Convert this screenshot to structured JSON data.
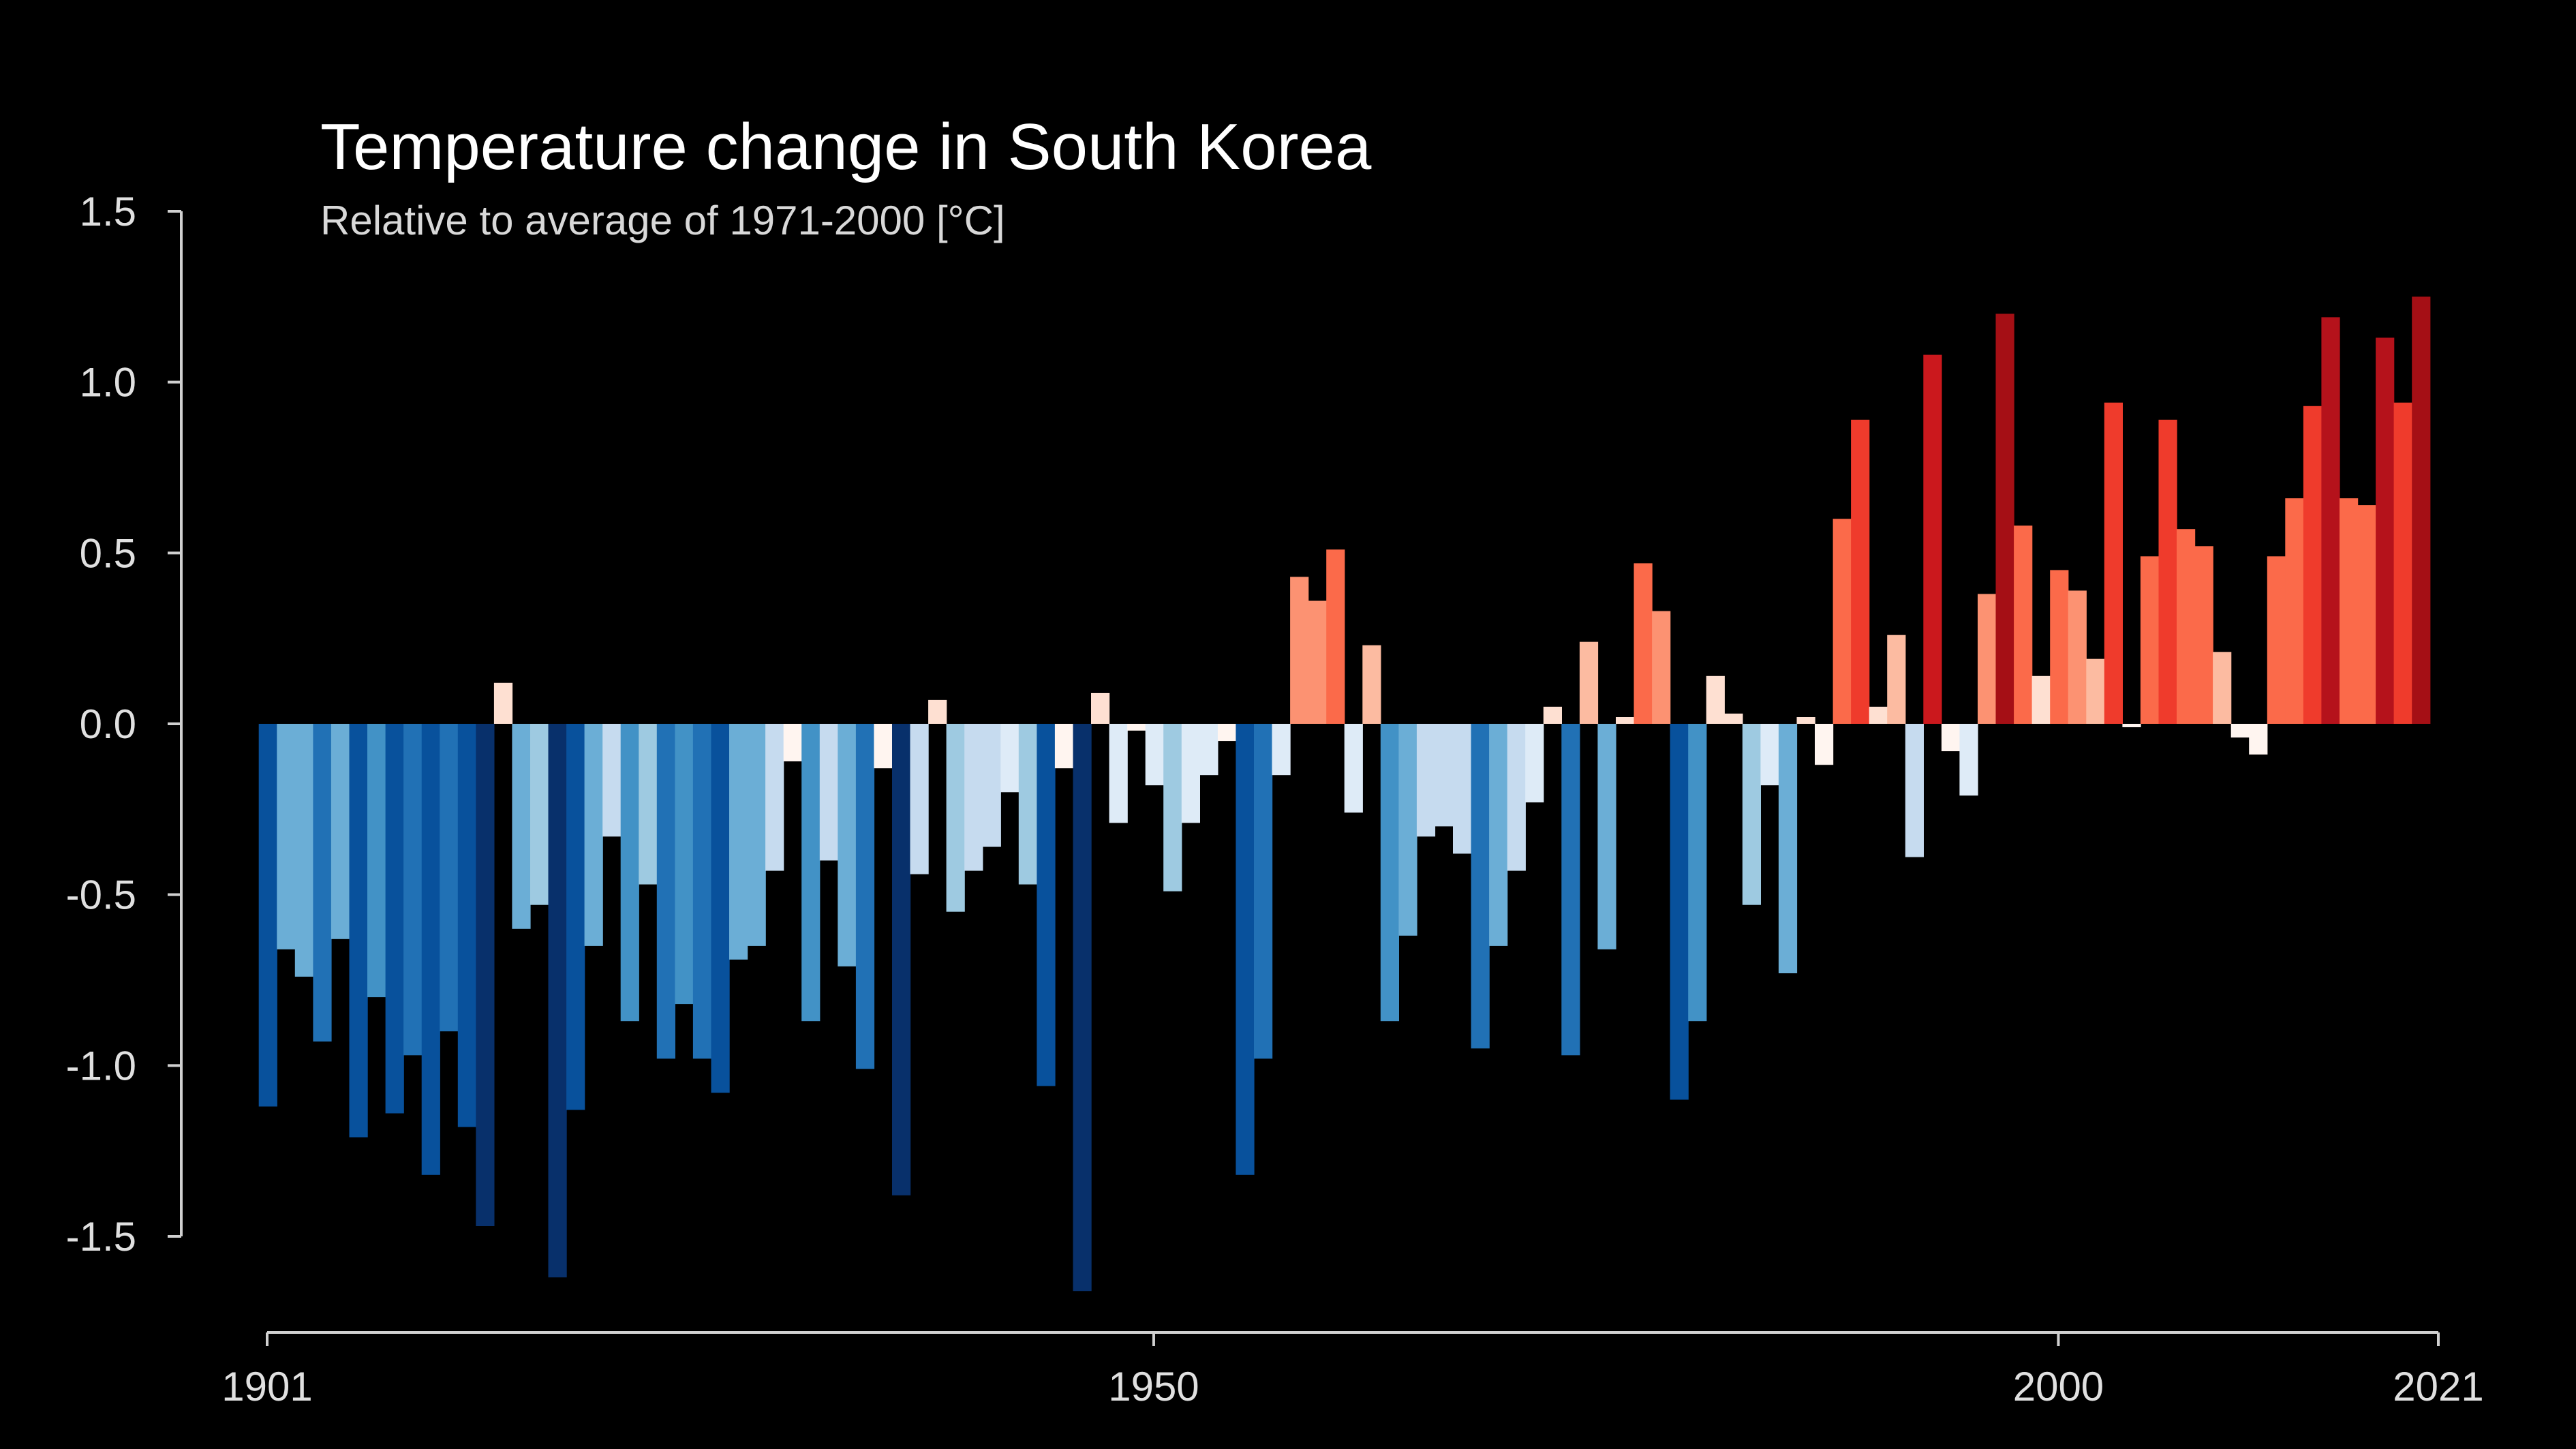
{
  "chart_data": {
    "type": "bar",
    "title": "Temperature change in South Korea",
    "subtitle": "Relative to average of 1971-2000  [°C]",
    "x_start": 1901,
    "x_end": 2021,
    "xticks": [
      1901,
      1950,
      2000,
      2021
    ],
    "yticks": [
      {
        "value": 1.5,
        "label": "1.5"
      },
      {
        "value": 1.0,
        "label": "1.0"
      },
      {
        "value": 0.5,
        "label": "0.5"
      },
      {
        "value": 0.0,
        "label": "0.0"
      },
      {
        "value": -0.5,
        "label": "-0.5"
      },
      {
        "value": -1.0,
        "label": "-1.0"
      },
      {
        "value": -1.5,
        "label": "-1.5"
      }
    ],
    "ylim": [
      -1.5,
      1.5
    ],
    "grid": false,
    "legend": "none",
    "years": [
      1901,
      1902,
      1903,
      1904,
      1905,
      1906,
      1907,
      1908,
      1909,
      1910,
      1911,
      1912,
      1913,
      1914,
      1915,
      1916,
      1917,
      1918,
      1919,
      1920,
      1921,
      1922,
      1923,
      1924,
      1925,
      1926,
      1927,
      1928,
      1929,
      1930,
      1931,
      1932,
      1933,
      1934,
      1935,
      1936,
      1937,
      1938,
      1939,
      1940,
      1941,
      1942,
      1943,
      1944,
      1945,
      1946,
      1947,
      1948,
      1949,
      1950,
      1951,
      1952,
      1953,
      1954,
      1955,
      1956,
      1957,
      1958,
      1959,
      1960,
      1961,
      1962,
      1963,
      1964,
      1965,
      1966,
      1967,
      1968,
      1969,
      1970,
      1971,
      1972,
      1973,
      1974,
      1975,
      1976,
      1977,
      1978,
      1979,
      1980,
      1981,
      1982,
      1983,
      1984,
      1985,
      1986,
      1987,
      1988,
      1989,
      1990,
      1991,
      1992,
      1993,
      1994,
      1995,
      1996,
      1997,
      1998,
      1999,
      2000,
      2001,
      2002,
      2003,
      2004,
      2005,
      2006,
      2007,
      2008,
      2009,
      2010,
      2011,
      2012,
      2013,
      2014,
      2015,
      2016,
      2017,
      2018,
      2019,
      2020,
      2021
    ],
    "values": [
      -1.12,
      -0.66,
      -0.74,
      -0.93,
      -0.63,
      -1.21,
      -0.8,
      -1.14,
      -0.97,
      -1.32,
      -0.9,
      -1.18,
      -1.47,
      0.12,
      -0.6,
      -0.53,
      -1.62,
      -1.13,
      -0.65,
      -0.33,
      -0.87,
      -0.47,
      -0.98,
      -0.82,
      -0.98,
      -1.08,
      -0.69,
      -0.65,
      -0.43,
      -0.11,
      -0.87,
      -0.4,
      -0.71,
      -1.01,
      -0.13,
      -1.38,
      -0.44,
      0.07,
      -0.55,
      -0.43,
      -0.36,
      -0.2,
      -0.47,
      -1.06,
      -0.13,
      -1.66,
      0.09,
      -0.29,
      -0.02,
      -0.18,
      -0.49,
      -0.29,
      -0.15,
      -0.05,
      -1.32,
      -0.98,
      -0.15,
      0.43,
      0.36,
      0.51,
      -0.26,
      0.23,
      -0.87,
      -0.62,
      -0.33,
      -0.3,
      -0.38,
      -0.95,
      -0.65,
      -0.43,
      -0.23,
      0.05,
      -0.97,
      0.24,
      -0.66,
      0.02,
      0.47,
      0.33,
      -1.1,
      -0.87,
      0.14,
      0.03,
      -0.53,
      -0.18,
      -0.73,
      0.02,
      -0.12,
      0.6,
      0.89,
      0.05,
      0.26,
      -0.39,
      1.08,
      -0.08,
      -0.21,
      0.38,
      1.2,
      0.58,
      0.14,
      0.45,
      0.39,
      0.19,
      0.94,
      -0.01,
      0.49,
      0.89,
      0.57,
      0.52,
      0.21,
      -0.04,
      -0.09,
      0.49,
      0.66,
      0.93,
      1.19,
      0.66,
      0.64,
      1.13,
      0.94,
      1.25,
      0.0
    ]
  }
}
